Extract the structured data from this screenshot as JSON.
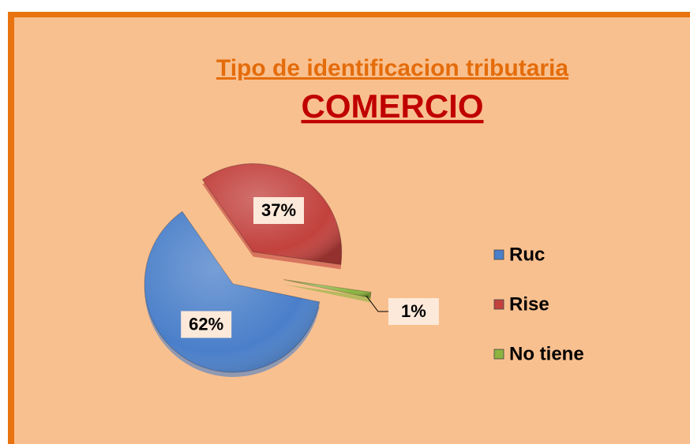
{
  "chart_data": {
    "type": "pie",
    "title": "Tipo de identificacion tributaria",
    "subtitle": "COMERCIO",
    "categories": [
      "Ruc",
      "Rise",
      "No tiene"
    ],
    "values": [
      62,
      37,
      1
    ],
    "value_labels": [
      "62%",
      "37%",
      "1%"
    ],
    "colors": [
      "#4a7fc9",
      "#c2413d",
      "#8cb43f"
    ],
    "legend": "right"
  }
}
